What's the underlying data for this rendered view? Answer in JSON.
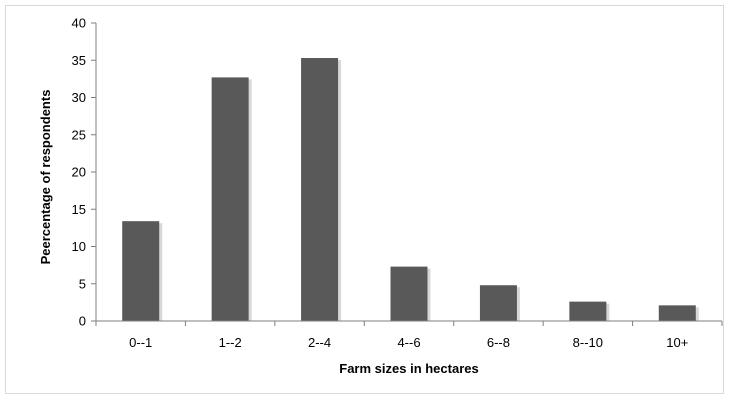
{
  "chart_data": {
    "type": "bar",
    "title": "",
    "categories": [
      "0--1",
      "1--2",
      "2--4",
      "4--6",
      "6--8",
      "8--10",
      "10+"
    ],
    "values": [
      13.4,
      32.7,
      35.3,
      7.3,
      4.8,
      2.6,
      2.1
    ],
    "xlabel": "Farm sizes in hectares",
    "ylabel": "Peercentage of respondents",
    "ylim": [
      0,
      40
    ],
    "yticks": [
      "0",
      "5",
      "10",
      "15",
      "20",
      "25",
      "30",
      "35",
      "40"
    ],
    "grid": false,
    "legend": "none",
    "bar_color": "#595959",
    "bar_shadow_color": "#c8c8c8"
  }
}
